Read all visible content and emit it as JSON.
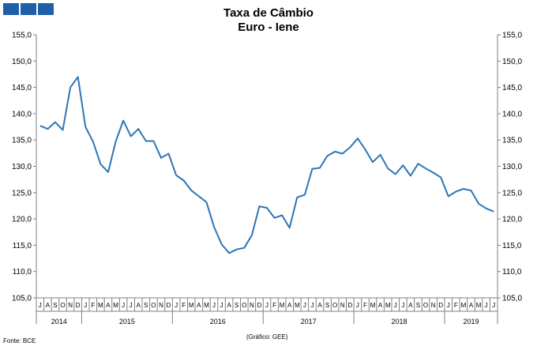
{
  "colors": {
    "line": "#2e75b6",
    "logo": "#1f5fa8",
    "axis": "#808080"
  },
  "header": {
    "title": "Taxa de Câmbio",
    "subtitle": "Euro - Iene"
  },
  "footer": {
    "source": "Fonte: BCE",
    "credit": "(Gráfico: GEE)"
  },
  "chart_data": {
    "type": "line",
    "title": "Taxa de Câmbio",
    "subtitle": "Euro - Iene",
    "ylim": [
      105,
      155
    ],
    "yticks": [
      "105,0",
      "110,0",
      "115,0",
      "120,0",
      "125,0",
      "130,0",
      "135,0",
      "140,0",
      "145,0",
      "150,0",
      "155,0"
    ],
    "grid": false,
    "months": [
      "J",
      "A",
      "S",
      "O",
      "N",
      "D",
      "J",
      "F",
      "M",
      "A",
      "M",
      "J",
      "J",
      "A",
      "S",
      "O",
      "N",
      "D",
      "J",
      "F",
      "M",
      "A",
      "M",
      "J",
      "J",
      "A",
      "S",
      "O",
      "N",
      "D",
      "J",
      "F",
      "M",
      "A",
      "M",
      "J",
      "J",
      "A",
      "S",
      "O",
      "N",
      "D",
      "J",
      "F",
      "M",
      "A",
      "M",
      "J",
      "J",
      "A",
      "S",
      "O",
      "N",
      "D",
      "J",
      "F",
      "M",
      "A",
      "M",
      "J",
      "J"
    ],
    "years": [
      {
        "label": "2014",
        "start": 0,
        "count": 6
      },
      {
        "label": "2015",
        "start": 6,
        "count": 12
      },
      {
        "label": "2016",
        "start": 18,
        "count": 12
      },
      {
        "label": "2017",
        "start": 30,
        "count": 12
      },
      {
        "label": "2018",
        "start": 42,
        "count": 12
      },
      {
        "label": "2019",
        "start": 54,
        "count": 7
      }
    ],
    "series": [
      {
        "values": [
          137.7,
          137.1,
          138.4,
          136.9,
          145.0,
          147.0,
          137.5,
          134.7,
          130.4,
          128.9,
          134.7,
          138.7,
          135.7,
          137.1,
          134.8,
          134.8,
          131.6,
          132.4,
          128.3,
          127.3,
          125.4,
          124.3,
          123.2,
          118.5,
          115.2,
          113.5,
          114.2,
          114.5,
          116.9,
          122.4,
          122.1,
          120.2,
          120.7,
          118.3,
          124.1,
          124.6,
          129.5,
          129.7,
          132.0,
          132.8,
          132.4,
          133.6,
          135.3,
          133.2,
          130.8,
          132.2,
          129.6,
          128.5,
          130.2,
          128.2,
          130.5,
          129.6,
          128.8,
          127.9,
          124.3,
          125.2,
          125.7,
          125.4,
          122.9,
          122.0,
          121.4
        ]
      }
    ]
  }
}
